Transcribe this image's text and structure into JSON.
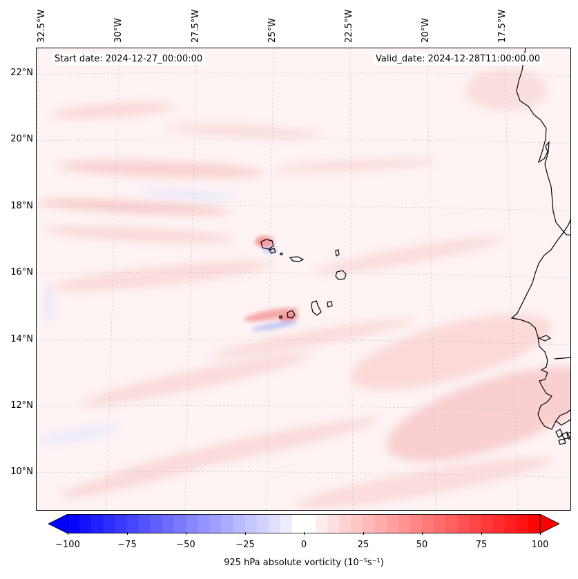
{
  "map": {
    "lon_labels": [
      "32.5°W",
      "30°W",
      "27.5°W",
      "25°W",
      "22.5°W",
      "20°W",
      "17.5°W"
    ],
    "lat_labels": [
      "22°N",
      "20°N",
      "18°N",
      "16°N",
      "14°N",
      "12°N",
      "10°N"
    ],
    "start_date": "Start date: 2024-12-27_00:00:00",
    "valid_date": "Valid_date: 2024-12-28T11:00:00.00",
    "colors": {
      "positive": "#ff0000",
      "negative": "#0000ff",
      "neutral": "#ffffff",
      "coast": "#000000"
    }
  },
  "colorbar": {
    "min": -100,
    "max": 100,
    "ticks": [
      "−100",
      "−75",
      "−50",
      "−25",
      "0",
      "25",
      "50",
      "75",
      "100"
    ],
    "label": "925 hPa absolute vorticity (10⁻⁵s⁻¹)"
  }
}
